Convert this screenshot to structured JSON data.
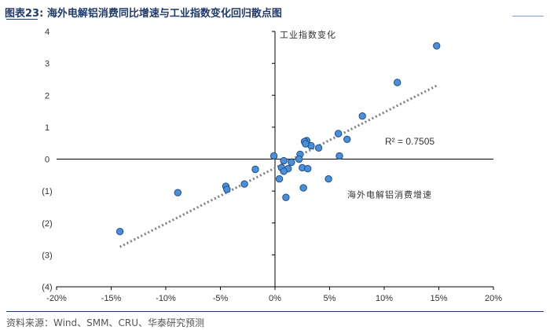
{
  "header": {
    "title": "图表23:   海外电解铝消费同比增速与工业指数变化回归散点图"
  },
  "footer": {
    "source": "资料来源：Wind、SMM、CRU、华泰研究预测"
  },
  "colors": {
    "point_fill": "#4a90d9",
    "point_stroke": "#1f4e8c",
    "trend": "#7f7f7f",
    "axis": "#000000",
    "text": "#333333"
  },
  "chart_data": {
    "type": "scatter",
    "title": "海外电解铝消费同比增速与工业指数变化回归散点图",
    "xlabel": "海外电解铝消费增速",
    "ylabel": "工业指数变化",
    "xlim": [
      -20,
      20
    ],
    "ylim": [
      -4,
      4
    ],
    "x_ticks": [
      -20,
      -15,
      -10,
      -5,
      0,
      5,
      10,
      15,
      20
    ],
    "x_tick_labels": [
      "-20%",
      "-15%",
      "-10%",
      "-5%",
      "0%",
      "5%",
      "10%",
      "15%",
      "20%"
    ],
    "y_ticks": [
      4,
      3,
      2,
      1,
      0,
      -1,
      -2,
      -3,
      -4
    ],
    "y_tick_labels": [
      "4",
      "3",
      "2",
      "1",
      "0",
      "(1)",
      "(2)",
      "(3)",
      "(4)"
    ],
    "points": [
      {
        "x": 14.8,
        "y": 3.55
      },
      {
        "x": 11.2,
        "y": 2.4
      },
      {
        "x": 8.0,
        "y": 1.35
      },
      {
        "x": 6.6,
        "y": 0.62
      },
      {
        "x": 5.8,
        "y": 0.8
      },
      {
        "x": 5.9,
        "y": 0.1
      },
      {
        "x": 4.9,
        "y": -0.62
      },
      {
        "x": 4.0,
        "y": 0.35
      },
      {
        "x": 3.3,
        "y": 0.42
      },
      {
        "x": 2.9,
        "y": 0.58
      },
      {
        "x": 2.7,
        "y": 0.55
      },
      {
        "x": 2.8,
        "y": 0.48
      },
      {
        "x": 2.5,
        "y": -0.27
      },
      {
        "x": 3.0,
        "y": -0.3
      },
      {
        "x": 2.3,
        "y": 0.15
      },
      {
        "x": 2.2,
        "y": 0.0
      },
      {
        "x": 1.5,
        "y": -0.1
      },
      {
        "x": 1.2,
        "y": -0.3
      },
      {
        "x": 0.8,
        "y": -0.05
      },
      {
        "x": 0.6,
        "y": -0.27
      },
      {
        "x": 0.8,
        "y": -0.38
      },
      {
        "x": 0.4,
        "y": -0.62
      },
      {
        "x": 2.6,
        "y": -0.9
      },
      {
        "x": 1.0,
        "y": -1.2
      },
      {
        "x": -0.1,
        "y": 0.1
      },
      {
        "x": -1.8,
        "y": -0.32
      },
      {
        "x": -2.8,
        "y": -0.78
      },
      {
        "x": -4.5,
        "y": -0.85
      },
      {
        "x": -4.4,
        "y": -0.95
      },
      {
        "x": -8.9,
        "y": -1.05
      },
      {
        "x": -14.2,
        "y": -2.27
      }
    ],
    "trendline": {
      "type": "linear",
      "x_range": [
        -14.2,
        14.8
      ],
      "y_at_start": -2.75,
      "y_at_end": 2.3,
      "style": "dotted"
    },
    "annotations": {
      "r_squared": "R² = 0.7505",
      "y_axis_title": "工业指数变化",
      "x_axis_title": "海外电解铝消费增速"
    },
    "grid": false,
    "legend": "none"
  }
}
